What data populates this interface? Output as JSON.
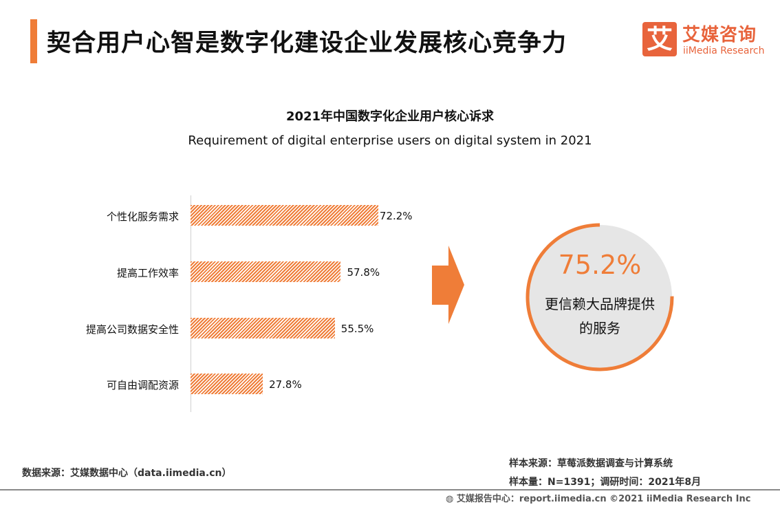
{
  "header": {
    "title": "契合用户心智是数字化建设企业发展核心竞争力",
    "logo_mark": "艾",
    "logo_cn": "艾媒咨询",
    "logo_en": "iiMedia Research"
  },
  "chart_data": {
    "type": "bar",
    "orientation": "horizontal",
    "title": "2021年中国数字化企业用户核心诉求",
    "subtitle": "Requirement of digital enterprise users on digital system in 2021",
    "categories": [
      "个性化服务需求",
      "提高工作效率",
      "提高公司数据安全性",
      "可自由调配资源"
    ],
    "values": [
      72.2,
      57.8,
      55.5,
      27.8
    ],
    "labels": [
      "72.2%",
      "57.8%",
      "55.5%",
      "27.8%"
    ],
    "unit": "%",
    "color": "#ef7d38",
    "grid": false
  },
  "highlight": {
    "value": 75.2,
    "value_label": "75.2%",
    "text": "更信赖大品牌提供的服务",
    "color": "#ef7d38"
  },
  "footer": {
    "source": "数据来源：艾媒数据中心（data.iimedia.cn）",
    "sample_source": "样本来源：草莓派数据调查与计算系统",
    "sample_size": "样本量：N=1391；调研时间：2021年8月",
    "copyright": "艾媒报告中心：report.iimedia.cn  ©2021  iiMedia Research  Inc"
  }
}
